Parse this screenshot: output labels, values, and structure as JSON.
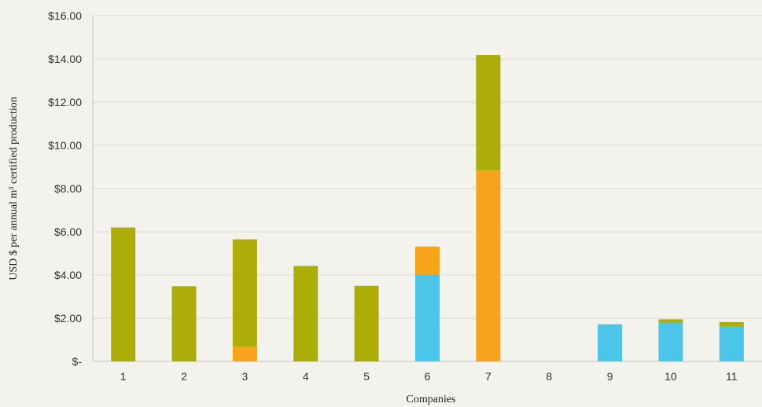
{
  "chart_data": {
    "type": "bar",
    "stacked": true,
    "categories": [
      "1",
      "2",
      "3",
      "4",
      "5",
      "6",
      "7",
      "8",
      "9",
      "10",
      "11"
    ],
    "series": [
      {
        "color": "#4cc6e8",
        "values": [
          0,
          0,
          0,
          0,
          0,
          4.0,
          0,
          0,
          1.72,
          1.8,
          1.62
        ]
      },
      {
        "color": "#f7a31c",
        "values": [
          0,
          0,
          0.68,
          0,
          0,
          1.32,
          8.85,
          0,
          0,
          0,
          0
        ]
      },
      {
        "color": "#adad09",
        "values": [
          6.2,
          3.48,
          4.97,
          4.42,
          3.5,
          0,
          5.33,
          0,
          0,
          0.15,
          0.2
        ]
      }
    ],
    "xlabel": "Companies",
    "ylabel": "USD $ per annual m³ certified production",
    "ylim": [
      0,
      16
    ],
    "yticks": [
      0,
      2,
      4,
      6,
      8,
      10,
      12,
      14,
      16
    ],
    "ytick_labels": [
      "$-",
      "$2.00",
      "$4.00",
      "$6.00",
      "$8.00",
      "$10.00",
      "$12.00",
      "$14.00",
      "$16.00"
    ],
    "grid": true
  }
}
